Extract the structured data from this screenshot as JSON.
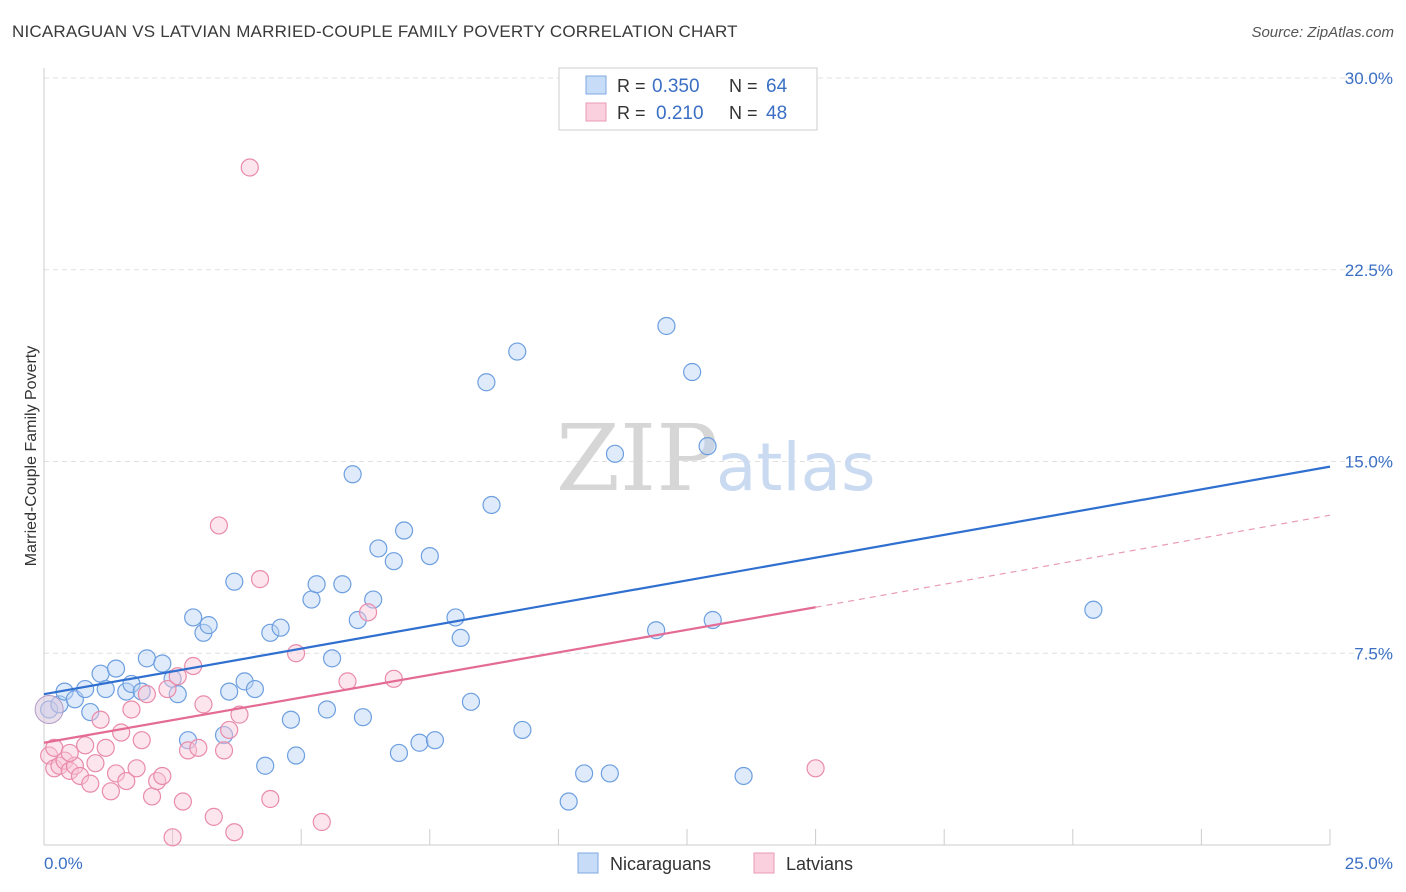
{
  "header": {
    "title": "NICARAGUAN VS LATVIAN MARRIED-COUPLE FAMILY POVERTY CORRELATION CHART",
    "source": "Source: ZipAtlas.com"
  },
  "watermark": {
    "zip": "ZIP",
    "atlas": "atlas"
  },
  "legend_stats": [
    {
      "r_label": "R =",
      "r_value": "0.350",
      "n_label": "N =",
      "n_value": "64",
      "color": "#9ec0ee"
    },
    {
      "r_label": "R =",
      "r_value": "0.210",
      "n_label": "N =",
      "n_value": "48",
      "color": "#f4b4c8"
    }
  ],
  "colors": {
    "blue_line": "#2f6fd0",
    "pink_line": "#e46b96",
    "blue_text": "#3a6fc4",
    "grid": "#dddddd"
  },
  "chart_data": {
    "type": "scatter",
    "title": "NICARAGUAN VS LATVIAN MARRIED-COUPLE FAMILY POVERTY CORRELATION CHART",
    "xlabel": "",
    "ylabel": "Married-Couple Family Poverty",
    "xlim": [
      0,
      25
    ],
    "ylim": [
      0,
      30
    ],
    "x_tick_labels": [
      "0.0%",
      "25.0%"
    ],
    "y_ticks": [
      7.5,
      15.0,
      22.5,
      30.0
    ],
    "y_tick_labels": [
      "7.5%",
      "15.0%",
      "22.5%",
      "30.0%"
    ],
    "legend": [
      "Nicaraguans",
      "Latvians"
    ],
    "series": [
      {
        "name": "Nicaraguans",
        "color": "#9ec0ee",
        "trend": {
          "x": [
            0,
            25
          ],
          "y": [
            5.9,
            14.8
          ]
        },
        "points": [
          [
            0.1,
            5.3
          ],
          [
            0.3,
            5.5
          ],
          [
            0.4,
            6.0
          ],
          [
            0.6,
            5.7
          ],
          [
            0.8,
            6.1
          ],
          [
            0.9,
            5.2
          ],
          [
            1.1,
            6.7
          ],
          [
            1.2,
            6.1
          ],
          [
            1.4,
            6.9
          ],
          [
            1.6,
            6.0
          ],
          [
            1.7,
            6.3
          ],
          [
            1.9,
            6.0
          ],
          [
            2.0,
            7.3
          ],
          [
            2.3,
            7.1
          ],
          [
            2.5,
            6.5
          ],
          [
            2.6,
            5.9
          ],
          [
            2.8,
            4.1
          ],
          [
            2.9,
            8.9
          ],
          [
            3.1,
            8.3
          ],
          [
            3.2,
            8.6
          ],
          [
            3.5,
            4.3
          ],
          [
            3.6,
            6.0
          ],
          [
            3.7,
            10.3
          ],
          [
            3.9,
            6.4
          ],
          [
            4.1,
            6.1
          ],
          [
            4.3,
            3.1
          ],
          [
            4.4,
            8.3
          ],
          [
            4.6,
            8.5
          ],
          [
            4.8,
            4.9
          ],
          [
            4.9,
            3.5
          ],
          [
            5.2,
            9.6
          ],
          [
            5.3,
            10.2
          ],
          [
            5.5,
            5.3
          ],
          [
            5.6,
            7.3
          ],
          [
            5.8,
            10.2
          ],
          [
            6.0,
            14.5
          ],
          [
            6.1,
            8.8
          ],
          [
            6.2,
            5.0
          ],
          [
            6.4,
            9.6
          ],
          [
            6.5,
            11.6
          ],
          [
            6.8,
            11.1
          ],
          [
            6.9,
            3.6
          ],
          [
            7.0,
            12.3
          ],
          [
            7.3,
            4.0
          ],
          [
            7.5,
            11.3
          ],
          [
            7.6,
            4.1
          ],
          [
            8.0,
            8.9
          ],
          [
            8.1,
            8.1
          ],
          [
            8.3,
            5.6
          ],
          [
            8.6,
            18.1
          ],
          [
            8.7,
            13.3
          ],
          [
            9.2,
            19.3
          ],
          [
            9.3,
            4.5
          ],
          [
            10.2,
            1.7
          ],
          [
            10.5,
            2.8
          ],
          [
            11.0,
            2.8
          ],
          [
            11.1,
            15.3
          ],
          [
            11.9,
            8.4
          ],
          [
            12.1,
            20.3
          ],
          [
            12.6,
            18.5
          ],
          [
            12.9,
            15.6
          ],
          [
            13.0,
            8.8
          ],
          [
            13.6,
            2.7
          ],
          [
            20.4,
            9.2
          ]
        ]
      },
      {
        "name": "Latvians",
        "color": "#f4b4c8",
        "trend": {
          "x": [
            0,
            15
          ],
          "y": [
            4.0,
            9.3
          ]
        },
        "trend_dashed": {
          "x": [
            15,
            25
          ],
          "y": [
            9.3,
            12.9
          ]
        },
        "points": [
          [
            0.1,
            3.5
          ],
          [
            0.2,
            3.0
          ],
          [
            0.3,
            3.1
          ],
          [
            0.4,
            3.3
          ],
          [
            0.5,
            2.9
          ],
          [
            0.6,
            3.1
          ],
          [
            0.7,
            2.7
          ],
          [
            0.8,
            3.9
          ],
          [
            0.9,
            2.4
          ],
          [
            1.0,
            3.2
          ],
          [
            1.1,
            4.9
          ],
          [
            1.2,
            3.8
          ],
          [
            1.3,
            2.1
          ],
          [
            1.4,
            2.8
          ],
          [
            1.5,
            4.4
          ],
          [
            1.6,
            2.5
          ],
          [
            1.7,
            5.3
          ],
          [
            1.8,
            3.0
          ],
          [
            1.9,
            4.1
          ],
          [
            2.0,
            5.9
          ],
          [
            2.1,
            1.9
          ],
          [
            2.2,
            2.5
          ],
          [
            2.3,
            2.7
          ],
          [
            2.4,
            6.1
          ],
          [
            2.5,
            0.3
          ],
          [
            2.6,
            6.6
          ],
          [
            2.7,
            1.7
          ],
          [
            2.8,
            3.7
          ],
          [
            2.9,
            7.0
          ],
          [
            3.0,
            3.8
          ],
          [
            3.1,
            5.5
          ],
          [
            3.3,
            1.1
          ],
          [
            3.4,
            12.5
          ],
          [
            3.5,
            3.7
          ],
          [
            3.6,
            4.5
          ],
          [
            3.7,
            0.5
          ],
          [
            3.8,
            5.1
          ],
          [
            4.0,
            26.5
          ],
          [
            4.2,
            10.4
          ],
          [
            4.4,
            1.8
          ],
          [
            4.9,
            7.5
          ],
          [
            5.4,
            0.9
          ],
          [
            5.9,
            6.4
          ],
          [
            6.3,
            9.1
          ],
          [
            6.8,
            6.5
          ],
          [
            15.0,
            3.0
          ],
          [
            0.2,
            3.8
          ],
          [
            0.5,
            3.6
          ]
        ]
      }
    ]
  }
}
